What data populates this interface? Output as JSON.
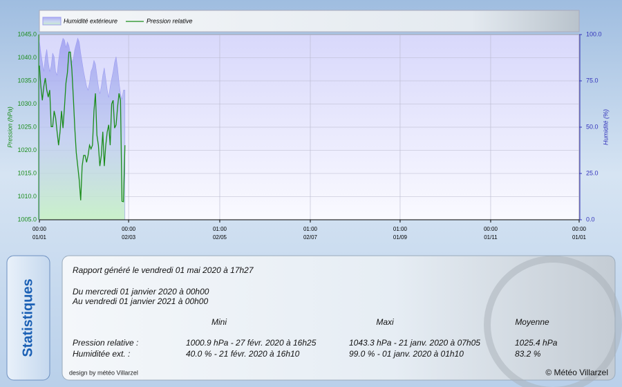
{
  "chart_data": {
    "type": "line",
    "x": [
      0,
      1,
      2,
      3,
      4,
      5,
      6,
      7,
      8,
      9,
      10,
      11,
      12,
      13,
      14,
      15,
      16,
      17,
      18,
      19,
      20,
      21,
      22,
      23,
      24,
      25,
      26,
      27,
      28,
      29,
      30,
      31,
      32,
      33,
      34,
      35,
      36,
      37,
      38,
      39,
      40,
      41,
      42,
      43,
      44,
      45,
      46,
      47,
      48,
      49,
      50,
      51,
      52,
      53,
      54,
      55,
      56,
      57,
      58
    ],
    "xlim": [
      0,
      366
    ],
    "xticks": [
      {
        "value": 0,
        "label": "00:00\n01/01"
      },
      {
        "value": 60.5,
        "label": "00:00\n02/03"
      },
      {
        "value": 122.3,
        "label": "01:00\n02/05"
      },
      {
        "value": 183.7,
        "label": "01:00\n02/07"
      },
      {
        "value": 244.6,
        "label": "01:00\n01/09"
      },
      {
        "value": 306,
        "label": "00:00\n01/11"
      },
      {
        "value": 366,
        "label": "00:00\n01/01"
      }
    ],
    "ylabel": "Pression (hPa)",
    "ylim": [
      1005,
      1045
    ],
    "yticks": [
      {
        "value": 1005,
        "label": "1005.0"
      },
      {
        "value": 1010,
        "label": "1010.0"
      },
      {
        "value": 1015,
        "label": "1015.0"
      },
      {
        "value": 1020,
        "label": "1020.0"
      },
      {
        "value": 1025,
        "label": "1025.0"
      },
      {
        "value": 1030,
        "label": "1030.0"
      },
      {
        "value": 1035,
        "label": "1035.0"
      },
      {
        "value": 1040,
        "label": "1040.0"
      },
      {
        "value": 1045,
        "label": "1045.0"
      }
    ],
    "y2label": "Humidité (%)",
    "y2lim": [
      0,
      100
    ],
    "y2ticks": [
      {
        "value": 0,
        "label": "0.0"
      },
      {
        "value": 25,
        "label": "25.0"
      },
      {
        "value": 50,
        "label": "50.0"
      },
      {
        "value": 75,
        "label": "75.0"
      },
      {
        "value": 100,
        "label": "100.0"
      }
    ],
    "grid": true,
    "series": [
      {
        "name": "Humidité extérieure",
        "type": "area",
        "axis": "y2",
        "color": "#9c9cf0",
        "values": [
          97,
          90,
          85,
          80,
          88,
          92,
          85,
          80,
          83,
          90,
          88,
          80,
          78,
          86,
          92,
          95,
          98,
          97,
          93,
          96,
          94,
          90,
          85,
          87,
          92,
          95,
          98,
          96,
          90,
          85,
          80,
          76,
          72,
          70,
          74,
          80,
          82,
          86,
          84,
          78,
          72,
          68,
          72,
          78,
          82,
          76,
          70,
          66,
          72,
          76,
          80,
          85,
          88,
          82,
          74,
          68,
          65,
          70,
          70
        ]
      },
      {
        "name": "Pression relative",
        "type": "line",
        "axis": "y",
        "color": "#1a8c1a",
        "values": [
          1038.3,
          1033.8,
          1030.8,
          1033.8,
          1035.6,
          1033,
          1031.5,
          1033,
          1025.1,
          1025.1,
          1028.5,
          1027,
          1024,
          1021.1,
          1024,
          1028.5,
          1024.8,
          1029.3,
          1034.5,
          1036.8,
          1041.2,
          1041.2,
          1037.5,
          1031.5,
          1024.8,
          1019.5,
          1016.6,
          1013.6,
          1009.2,
          1016.6,
          1018.9,
          1018.9,
          1017.4,
          1018.9,
          1021.1,
          1020.3,
          1021.1,
          1028.5,
          1032.3,
          1023.3,
          1021.1,
          1016.6,
          1018.9,
          1024,
          1016.6,
          1021.1,
          1024,
          1025.5,
          1021.1,
          1030,
          1030.8,
          1024.8,
          1025.5,
          1029.3,
          1032.3,
          1030.8,
          1009,
          1008.9,
          1021.1
        ]
      }
    ]
  },
  "stats": {
    "side_title": "Statistiques",
    "report": "Rapport généré le vendredi 01 mai 2020 à 17h27",
    "from": "Du mercredi 01 janvier 2020 à 00h00",
    "to": "Au vendredi 01 janvier 2021 à 00h00",
    "headers": [
      "Mini",
      "Maxi",
      "Moyenne"
    ],
    "rows": [
      [
        "Pression relative :",
        "1000.9 hPa - 27 févr. 2020 à 16h25",
        "1043.3 hPa - 21 janv. 2020 à 07h05",
        "1025.4 hPa"
      ],
      [
        "Humiditée ext. :",
        "40.0 % - 21 févr. 2020 à 16h10",
        "99.0 % - 01 janv. 2020 à 01h10",
        "83.2 %"
      ]
    ],
    "credit": "design by météo Villarzel",
    "copyright": "© Météo Villarzel"
  }
}
